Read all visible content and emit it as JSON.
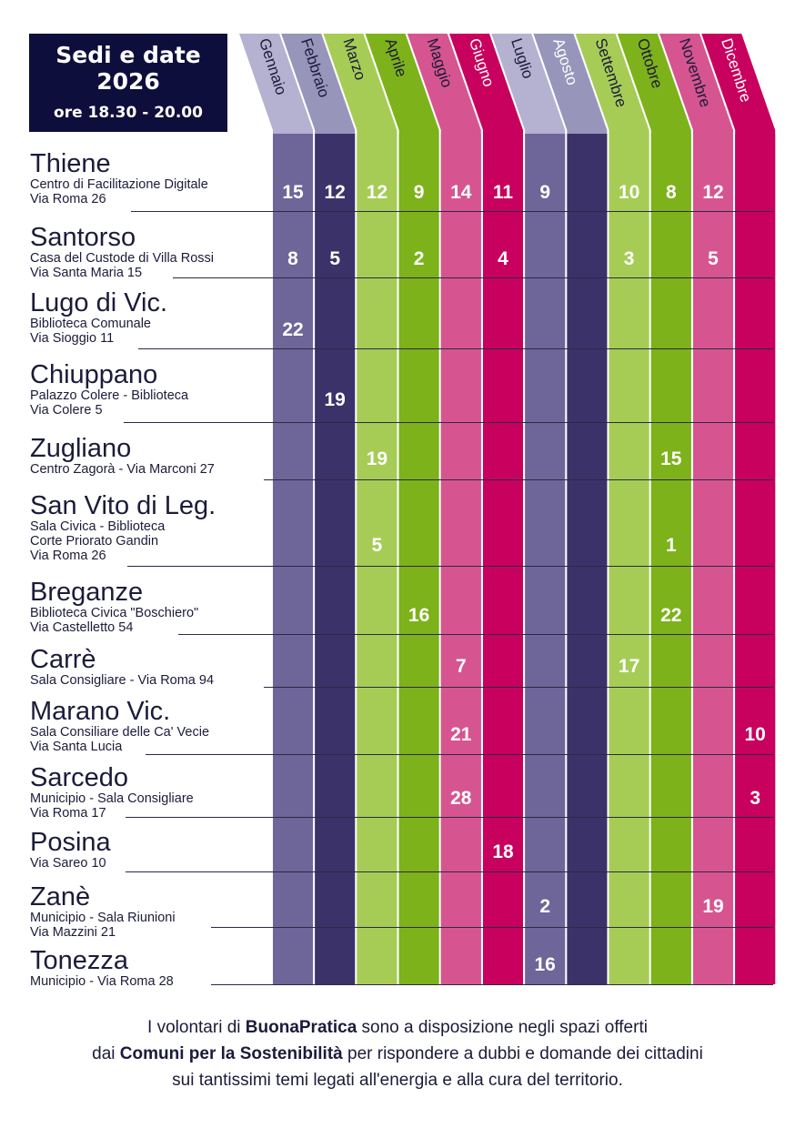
{
  "header": {
    "line1": "Sedi e date",
    "line2": "2026",
    "line3": "ore 18.30 - 20.00"
  },
  "months": [
    {
      "label": "Gennaio",
      "color": "#6e6599",
      "tab_color": "#b5b1d0"
    },
    {
      "label": "Febbraio",
      "color": "#3c326a",
      "tab_color": "#9895bb"
    },
    {
      "label": "Marzo",
      "color": "#a6cc56",
      "tab_color": "#a6cc56"
    },
    {
      "label": "Aprile",
      "color": "#7db21b",
      "tab_color": "#7db21b"
    },
    {
      "label": "Maggio",
      "color": "#d65590",
      "tab_color": "#d65590"
    },
    {
      "label": "Giugno",
      "color": "#c8005e",
      "tab_color": "#c8005e"
    },
    {
      "label": "Luglio",
      "color": "#6e6599",
      "tab_color": "#b5b1d0"
    },
    {
      "label": "Agosto",
      "color": "#3c326a",
      "tab_color": "#9895bb"
    },
    {
      "label": "Settembre",
      "color": "#a6cc56",
      "tab_color": "#a6cc56"
    },
    {
      "label": "Ottobre",
      "color": "#7db21b",
      "tab_color": "#7db21b"
    },
    {
      "label": "Novembre",
      "color": "#d65590",
      "tab_color": "#d65590"
    },
    {
      "label": "Dicembre",
      "color": "#c8005e",
      "tab_color": "#c8005e"
    }
  ],
  "locations": [
    {
      "name": "Thiene",
      "lines": [
        "Centro di Facilitazione Digitale",
        "Via Roma 26"
      ],
      "dates": [
        "15",
        "12",
        "12",
        "9",
        "14",
        "11",
        "9",
        "",
        "10",
        "8",
        "12",
        ""
      ]
    },
    {
      "name": "Santorso",
      "lines": [
        "Casa del Custode di Villa Rossi",
        "Via Santa Maria 15"
      ],
      "dates": [
        "8",
        "5",
        "",
        "2",
        "",
        "4",
        "",
        "",
        "3",
        "",
        "5",
        ""
      ]
    },
    {
      "name": "Lugo di Vic.",
      "lines": [
        "Biblioteca Comunale",
        "Via Sioggio 11"
      ],
      "dates": [
        "22",
        "",
        "",
        "",
        "",
        "",
        "",
        "",
        "",
        "",
        "",
        ""
      ]
    },
    {
      "name": "Chiuppano",
      "lines": [
        "Palazzo Colere - Biblioteca",
        "Via Colere 5"
      ],
      "dates": [
        "",
        "19",
        "",
        "",
        "",
        "",
        "",
        "",
        "",
        "",
        "",
        ""
      ]
    },
    {
      "name": "Zugliano",
      "lines": [
        "Centro Zagorà - Via Marconi 27"
      ],
      "dates": [
        "",
        "",
        "19",
        "",
        "",
        "",
        "",
        "",
        "",
        "15",
        "",
        ""
      ]
    },
    {
      "name": "San Vito di Leg.",
      "lines": [
        "Sala Civica - Biblioteca",
        "Corte Priorato Gandin",
        "Via Roma 26"
      ],
      "dates": [
        "",
        "",
        "5",
        "",
        "",
        "",
        "",
        "",
        "",
        "1",
        "",
        ""
      ]
    },
    {
      "name": "Breganze",
      "lines": [
        "Biblioteca Civica \"Boschiero\"",
        "Via Castelletto 54"
      ],
      "dates": [
        "",
        "",
        "",
        "16",
        "",
        "",
        "",
        "",
        "",
        "22",
        "",
        ""
      ]
    },
    {
      "name": "Carrè",
      "lines": [
        "Sala Consigliare - Via Roma 94"
      ],
      "dates": [
        "",
        "",
        "",
        "",
        "7",
        "",
        "",
        "",
        "17",
        "",
        "",
        ""
      ]
    },
    {
      "name": "Marano Vic.",
      "lines": [
        "Sala Consiliare delle Ca' Vecie",
        "Via Santa Lucia"
      ],
      "dates": [
        "",
        "",
        "",
        "",
        "21",
        "",
        "",
        "",
        "",
        "",
        "",
        "10"
      ]
    },
    {
      "name": "Sarcedo",
      "lines": [
        "Municipio - Sala Consigliare",
        "Via Roma 17"
      ],
      "dates": [
        "",
        "",
        "",
        "",
        "28",
        "",
        "",
        "",
        "",
        "",
        "",
        "3"
      ]
    },
    {
      "name": "Posina",
      "lines": [
        "Via Sareo 10"
      ],
      "dates": [
        "",
        "",
        "",
        "",
        "",
        "18",
        "",
        "",
        "",
        "",
        "",
        ""
      ]
    },
    {
      "name": "Zanè",
      "lines": [
        "Municipio - Sala Riunioni",
        "Via Mazzini 21"
      ],
      "dates": [
        "",
        "",
        "",
        "",
        "",
        "",
        "2",
        "",
        "",
        "",
        "19",
        ""
      ]
    },
    {
      "name": "Tonezza",
      "lines": [
        "Municipio - Via Roma 28"
      ],
      "dates": [
        "",
        "",
        "",
        "",
        "",
        "",
        "16",
        "",
        "",
        "",
        "",
        ""
      ]
    }
  ],
  "footer": {
    "l1_a": "I volontari di ",
    "l1_b": "BuonaPratica",
    "l1_c": " sono a disposizione negli spazi offerti",
    "l2_a": "dai ",
    "l2_b": "Comuni per la Sostenibilità",
    "l2_c": " per rispondere a dubbi e domande dei cittadini",
    "l3": "sui tantissimi temi legati all'energia e alla cura del territorio."
  }
}
